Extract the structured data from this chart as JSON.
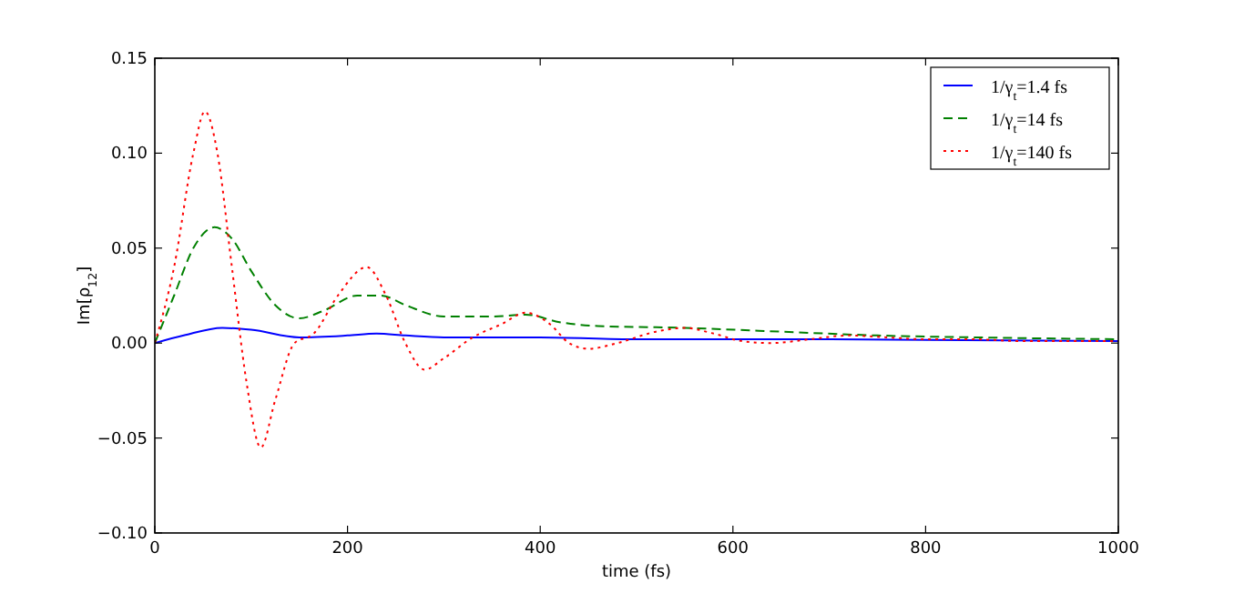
{
  "chart_data": {
    "type": "line",
    "xlabel": "time (fs)",
    "ylabel": "Im[ρ$_{12}$]",
    "xlim": [
      0,
      1000
    ],
    "ylim": [
      -0.1,
      0.15
    ],
    "xticks": [
      0,
      200,
      400,
      600,
      800,
      1000
    ],
    "yticks": [
      {
        "value": -0.1,
        "label": "−0.10"
      },
      {
        "value": -0.05,
        "label": "−0.05"
      },
      {
        "value": 0,
        "label": "0.00"
      },
      {
        "value": 0.05,
        "label": "0.05"
      },
      {
        "value": 0.1,
        "label": "0.10"
      },
      {
        "value": 0.15,
        "label": "0.15"
      }
    ],
    "legend": "top right",
    "grid": false,
    "series": [
      {
        "name": "1/γ$_{t}$=1.4 fs",
        "color": "#0000ff",
        "line_style": "solid",
        "x": [
          0,
          30,
          70,
          100,
          150,
          200,
          230,
          260,
          300,
          400,
          500,
          700,
          1000
        ],
        "values": [
          0,
          0.004,
          0.008,
          0.007,
          0.003,
          0.004,
          0.005,
          0.004,
          0.003,
          0.003,
          0.002,
          0.002,
          0.001
        ]
      },
      {
        "name": "1/γ$_{t}$=14 fs",
        "color": "#008000",
        "line_style": "dashed",
        "x": [
          0,
          20,
          40,
          62,
          80,
          100,
          125,
          150,
          175,
          210,
          235,
          260,
          300,
          350,
          385,
          420,
          460,
          550,
          650,
          750,
          850,
          1000
        ],
        "values": [
          0,
          0.025,
          0.05,
          0.061,
          0.055,
          0.038,
          0.02,
          0.013,
          0.017,
          0.025,
          0.025,
          0.02,
          0.014,
          0.014,
          0.015,
          0.011,
          0.009,
          0.008,
          0.006,
          0.004,
          0.003,
          0.002
        ]
      },
      {
        "name": "1/γ$_{t}$=140 fs",
        "color": "#ff0000",
        "line_style": "dotted",
        "x": [
          0,
          20,
          40,
          52,
          65,
          80,
          95,
          110,
          125,
          145,
          165,
          190,
          220,
          240,
          260,
          280,
          300,
          330,
          360,
          385,
          410,
          430,
          450,
          480,
          520,
          550,
          580,
          610,
          640,
          680,
          720,
          760,
          800,
          850,
          900,
          1000
        ],
        "values": [
          0,
          0.04,
          0.1,
          0.122,
          0.1,
          0.04,
          -0.02,
          -0.055,
          -0.03,
          0,
          0.005,
          0.025,
          0.04,
          0.025,
          0,
          -0.014,
          -0.008,
          0.003,
          0.01,
          0.016,
          0.01,
          0,
          -0.003,
          0,
          0.006,
          0.008,
          0.005,
          0.001,
          0,
          0.002,
          0.004,
          0.003,
          0.002,
          0.002,
          0.001,
          0.001
        ]
      }
    ]
  }
}
